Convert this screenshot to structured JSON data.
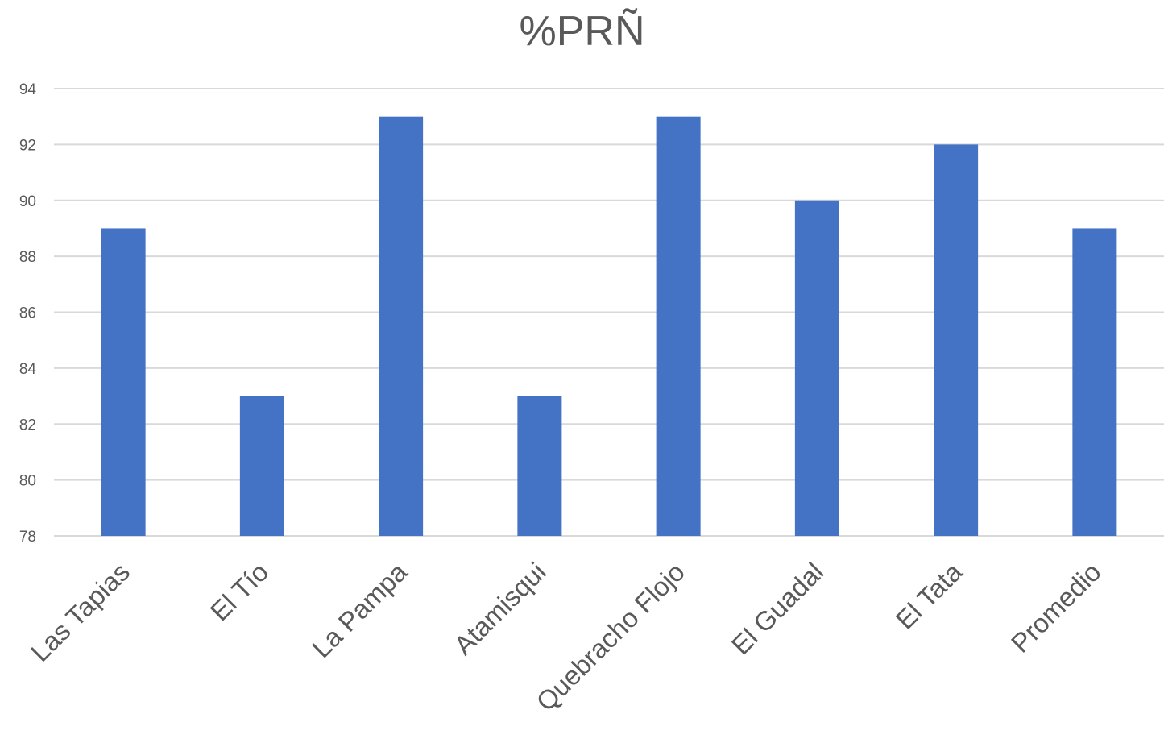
{
  "chart_data": {
    "type": "bar",
    "title": "%PRÑ",
    "xlabel": "",
    "ylabel": "",
    "categories": [
      "Las Tapias",
      "El Tío",
      "La Pampa",
      "Atamisqui",
      "Quebracho Flojo",
      "El Guadal",
      "El Tata",
      "Promedio"
    ],
    "values": [
      89,
      83,
      93,
      83,
      93,
      90,
      92,
      89
    ],
    "ylim": [
      78,
      94
    ],
    "yticks": [
      78,
      80,
      82,
      84,
      86,
      88,
      90,
      92,
      94
    ],
    "grid": true,
    "legend": "none",
    "bar_color": "#4472C4",
    "grid_color": "#D9D9D9",
    "text_color": "#595959"
  }
}
